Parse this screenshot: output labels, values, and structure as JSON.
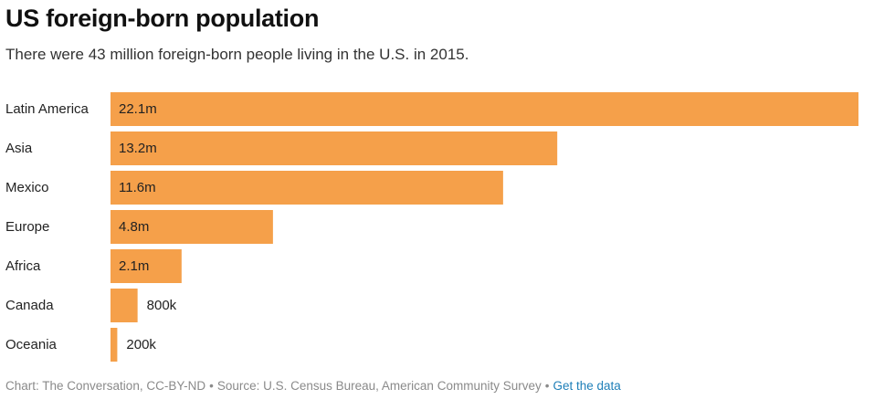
{
  "chart_data": {
    "type": "bar",
    "orientation": "horizontal",
    "title": "US foreign-born population",
    "subtitle": "There were 43 million foreign-born people living in the U.S. in 2015.",
    "categories": [
      "Latin America",
      "Asia",
      "Mexico",
      "Europe",
      "Africa",
      "Canada",
      "Oceania"
    ],
    "values": [
      22.1,
      13.2,
      11.6,
      4.8,
      2.1,
      0.8,
      0.2
    ],
    "value_unit": "millions",
    "data_labels": [
      "22.1m",
      "13.2m",
      "11.6m",
      "4.8m",
      "2.1m",
      "800k",
      "200k"
    ],
    "xlim": [
      0,
      22.1
    ],
    "xlabel": "",
    "ylabel": "",
    "grid": false,
    "legend": "none",
    "bar_color": "#f5a04a",
    "label_color": "#222222"
  },
  "footer": {
    "credit": "Chart: The Conversation, CC-BY-ND",
    "separator": "•",
    "source": "Source: U.S. Census Bureau, American Community Survey",
    "link_label": "Get the data",
    "link_color": "#1e7fb8"
  }
}
